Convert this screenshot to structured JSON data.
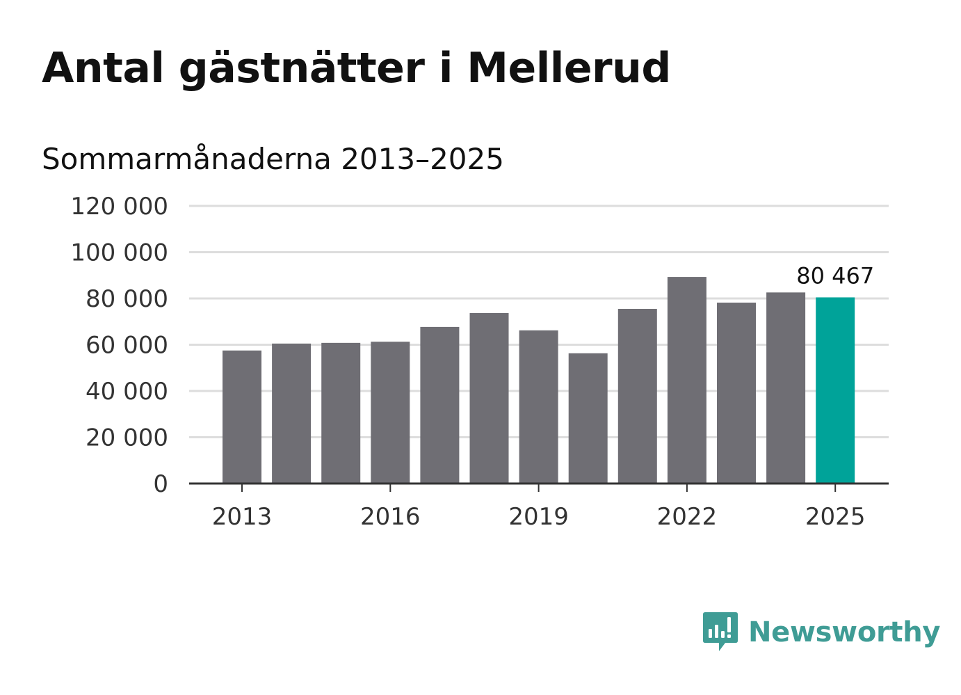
{
  "chart_data": {
    "type": "bar",
    "title": "Antal gästnätter i Mellerud",
    "subtitle": "Sommarmånaderna 2013–2025",
    "categories": [
      "2013",
      "2014",
      "2015",
      "2016",
      "2017",
      "2018",
      "2019",
      "2020",
      "2021",
      "2022",
      "2023",
      "2024",
      "2025"
    ],
    "values": [
      57500,
      60500,
      60800,
      61300,
      67700,
      73700,
      66200,
      56300,
      75500,
      89300,
      78200,
      82600,
      80467
    ],
    "x_tick_labels": [
      "2013",
      "2016",
      "2019",
      "2022",
      "2025"
    ],
    "y_ticks": [
      0,
      20000,
      40000,
      60000,
      80000,
      100000,
      120000
    ],
    "y_tick_labels": [
      "0",
      "20 000",
      "40 000",
      "60 000",
      "80 000",
      "100 000",
      "120 000"
    ],
    "ylim": [
      0,
      120000
    ],
    "xlabel": "",
    "ylabel": "",
    "grid": true,
    "highlight_index": 12,
    "data_label": "80 467",
    "colors": {
      "bar": "#6f6e74",
      "highlight": "#00a399",
      "grid": "#dddddd",
      "axis": "#333333"
    }
  },
  "brand": {
    "name": "Newsworthy",
    "icon": "newsworthy-logo-icon",
    "color": "#3f9c95"
  }
}
